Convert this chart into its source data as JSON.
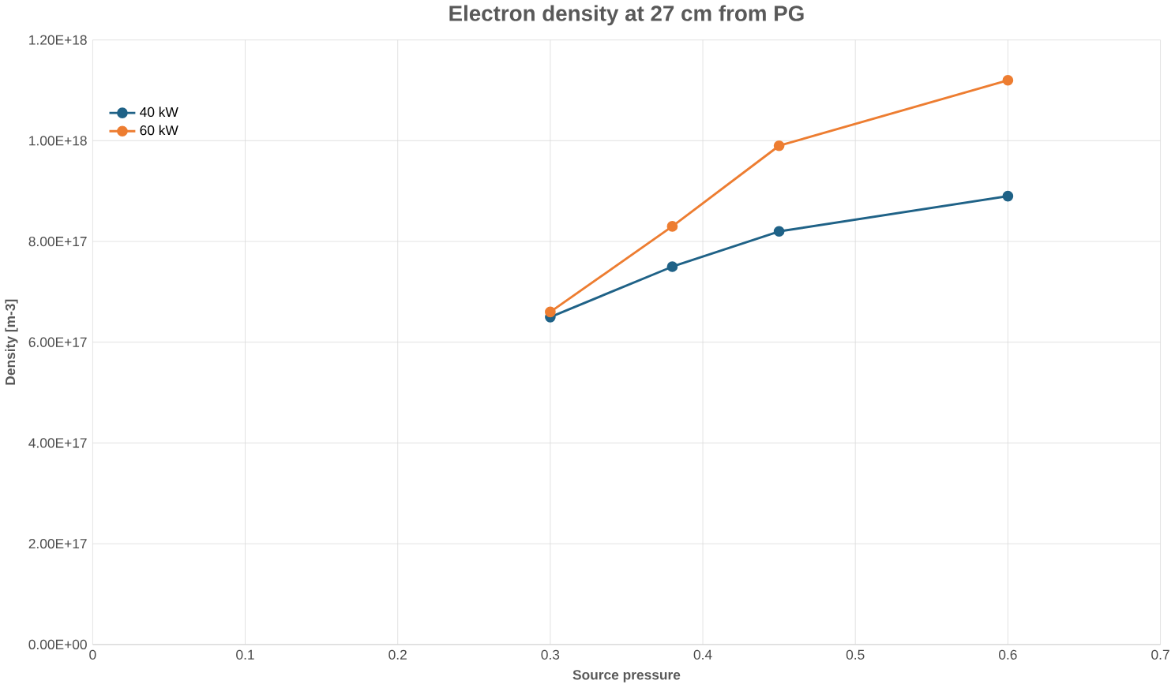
{
  "chart_data": {
    "type": "line",
    "title": "Electron density at 27 cm from PG",
    "xlabel": "Source pressure",
    "ylabel": "Density [m-3]",
    "x": [
      0.3,
      0.38,
      0.45,
      0.6
    ],
    "series": [
      {
        "name": "40 kW",
        "color": "#1f6287",
        "values": [
          6.5e+17,
          7.5e+17,
          8.2e+17,
          8.9e+17
        ]
      },
      {
        "name": "60 kW",
        "color": "#ed7d31",
        "values": [
          6.6e+17,
          8.3e+17,
          9.9e+17,
          1.12e+18
        ]
      }
    ],
    "xlim": [
      0,
      0.7
    ],
    "xticks": [
      0,
      0.1,
      0.2,
      0.3,
      0.4,
      0.5,
      0.6,
      0.7
    ],
    "ylim": [
      0,
      1.2e+18
    ],
    "yticks": [
      {
        "value": 0,
        "label": "0.00E+00"
      },
      {
        "value": 2e+17,
        "label": "2.00E+17"
      },
      {
        "value": 4e+17,
        "label": "4.00E+17"
      },
      {
        "value": 6e+17,
        "label": "6.00E+17"
      },
      {
        "value": 8e+17,
        "label": "8.00E+17"
      },
      {
        "value": 1e+18,
        "label": "1.00E+18"
      },
      {
        "value": 1.2e+18,
        "label": "1.20E+18"
      }
    ],
    "grid": true,
    "legend": "top left",
    "marker": "circle",
    "line_style": "solid"
  }
}
